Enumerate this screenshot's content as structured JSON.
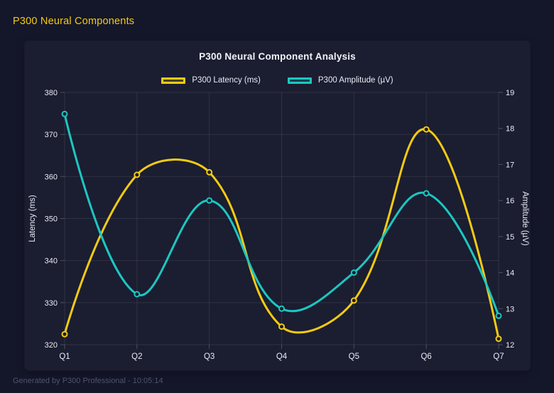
{
  "header": {
    "title": "P300 Neural Components"
  },
  "footer": {
    "text": "Generated by P300 Professional - 10:05:14"
  },
  "colors": {
    "page_bg": "#14162a",
    "card_bg": "#1b1d31",
    "accent_yellow": "#f3cb12",
    "accent_teal": "#1cc7c0",
    "text": "#e9ebf4",
    "muted": "#50556c",
    "grid": "rgba(255,255,255,0.09)",
    "tick": "rgba(255,255,255,0.22)"
  },
  "chart_data": {
    "type": "line",
    "title": "P300 Neural Component Analysis",
    "categories": [
      "Q1",
      "Q2",
      "Q3",
      "Q4",
      "Q5",
      "Q6",
      "Q7"
    ],
    "series": [
      {
        "name": "P300 Latency (ms)",
        "axis": "left",
        "color": "#f3cb12",
        "values": [
          322.5,
          360.4,
          361.0,
          324.3,
          330.5,
          371.2,
          321.4
        ]
      },
      {
        "name": "P300 Amplitude (µV)",
        "axis": "right",
        "color": "#1cc7c0",
        "values": [
          18.4,
          13.4,
          16.0,
          13.0,
          14.0,
          16.2,
          12.8
        ]
      }
    ],
    "y_left": {
      "label": "Latency (ms)",
      "min": 320,
      "max": 380,
      "step": 10
    },
    "y_right": {
      "label": "Amplitude (µV)",
      "min": 12,
      "max": 19,
      "step": 1
    },
    "grid": true,
    "smooth": true,
    "tension": 0.4,
    "legend_position": "top"
  }
}
